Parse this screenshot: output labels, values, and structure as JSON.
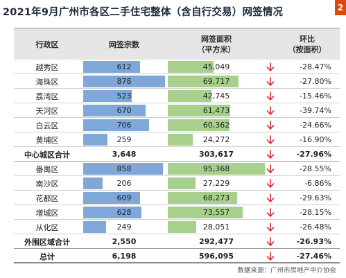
{
  "title": "2021年9月广州市各区二手住宅整体（含自行交易）网签情况",
  "corner_badge": "2",
  "columns": {
    "district": "行政区",
    "count": "网签宗数",
    "area_line1": "网签面积",
    "area_line2": "（平方米）",
    "change_line1": "环比",
    "change_line2": "（按面积）"
  },
  "scale": {
    "count_max": 878,
    "area_max": 95368
  },
  "colors": {
    "count_bar": "#7fa8d8",
    "area_bar": "#a8d08d",
    "down_arrow": "#d7262f"
  },
  "rows": [
    {
      "district": "越秀区",
      "count": "612",
      "count_value": 612,
      "area": "45,049",
      "area_value": 45049,
      "change": "-28.47%",
      "type": "district",
      "trend": "down"
    },
    {
      "district": "海珠区",
      "count": "878",
      "count_value": 878,
      "area": "69,717",
      "area_value": 69717,
      "change": "-27.80%",
      "type": "district",
      "trend": "down"
    },
    {
      "district": "荔湾区",
      "count": "523",
      "count_value": 523,
      "area": "42,745",
      "area_value": 42745,
      "change": "-15.46%",
      "type": "district",
      "trend": "down"
    },
    {
      "district": "天河区",
      "count": "670",
      "count_value": 670,
      "area": "61,473",
      "area_value": 61473,
      "change": "-39.74%",
      "type": "district",
      "trend": "down"
    },
    {
      "district": "白云区",
      "count": "706",
      "count_value": 706,
      "area": "60,362",
      "area_value": 60362,
      "change": "-24.66%",
      "type": "district",
      "trend": "down"
    },
    {
      "district": "黄埔区",
      "count": "259",
      "count_value": 259,
      "area": "24,272",
      "area_value": 24272,
      "change": "-16.90%",
      "type": "district",
      "trend": "down"
    },
    {
      "district": "中心城区合计",
      "count": "3,648",
      "area": "303,617",
      "change": "-27.96%",
      "type": "total",
      "trend": "down"
    },
    {
      "district": "番禺区",
      "count": "858",
      "count_value": 858,
      "area": "95,368",
      "area_value": 95368,
      "change": "-28.55%",
      "type": "district",
      "trend": "down"
    },
    {
      "district": "南沙区",
      "count": "206",
      "count_value": 206,
      "area": "27,229",
      "area_value": 27229,
      "change": "-6.86%",
      "type": "district",
      "trend": "down"
    },
    {
      "district": "花都区",
      "count": "609",
      "count_value": 609,
      "area": "68,273",
      "area_value": 68273,
      "change": "-29.63%",
      "type": "district",
      "trend": "down"
    },
    {
      "district": "增城区",
      "count": "628",
      "count_value": 628,
      "area": "73,557",
      "area_value": 73557,
      "change": "-28.15%",
      "type": "district",
      "trend": "down"
    },
    {
      "district": "从化区",
      "count": "249",
      "count_value": 249,
      "area": "28,051",
      "area_value": 28051,
      "change": "-26.48%",
      "type": "district",
      "trend": "down"
    },
    {
      "district": "外围区域合计",
      "count": "2,550",
      "area": "292,477",
      "change": "-26.93%",
      "type": "total",
      "trend": "down"
    },
    {
      "district": "总计",
      "count": "6,198",
      "area": "596,095",
      "change": "-27.46%",
      "type": "grand",
      "trend": "down"
    }
  ],
  "source": "数据来源：广州市房地产中介协会"
}
